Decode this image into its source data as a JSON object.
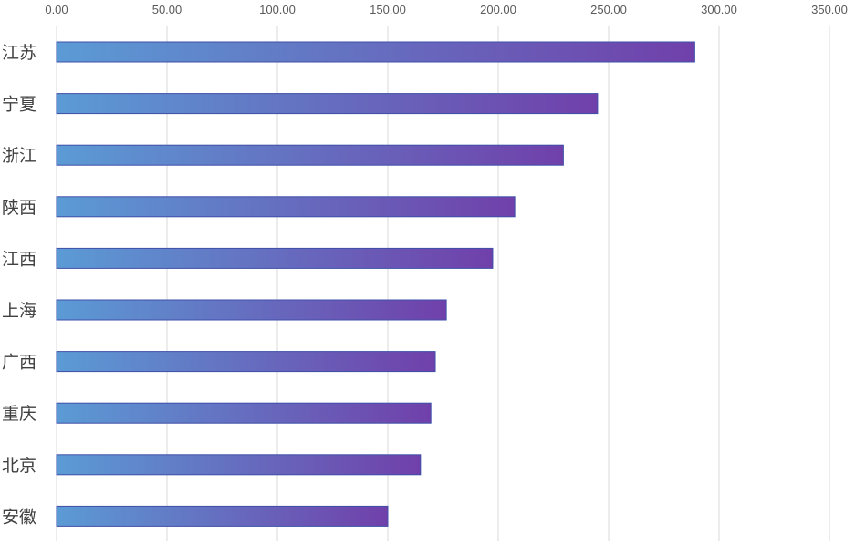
{
  "chart_data": {
    "type": "bar",
    "orientation": "horizontal",
    "categories": [
      "江苏",
      "宁夏",
      "浙江",
      "陕西",
      "江西",
      "上海",
      "广西",
      "重庆",
      "北京",
      "安徽"
    ],
    "values": [
      289.0,
      245.0,
      229.5,
      207.5,
      197.5,
      176.5,
      171.5,
      169.5,
      164.8,
      150.0
    ],
    "x_ticks": [
      "0.00",
      "50.00",
      "100.00",
      "150.00",
      "200.00",
      "250.00",
      "300.00",
      "350.00"
    ],
    "xlim": [
      0,
      350
    ],
    "x_axis_position": "top",
    "grid": true,
    "legend": "none",
    "title": "",
    "xlabel": "",
    "ylabel": "",
    "bar_gradient": {
      "start": "#5B9BD5",
      "end": "#7040AA"
    }
  }
}
